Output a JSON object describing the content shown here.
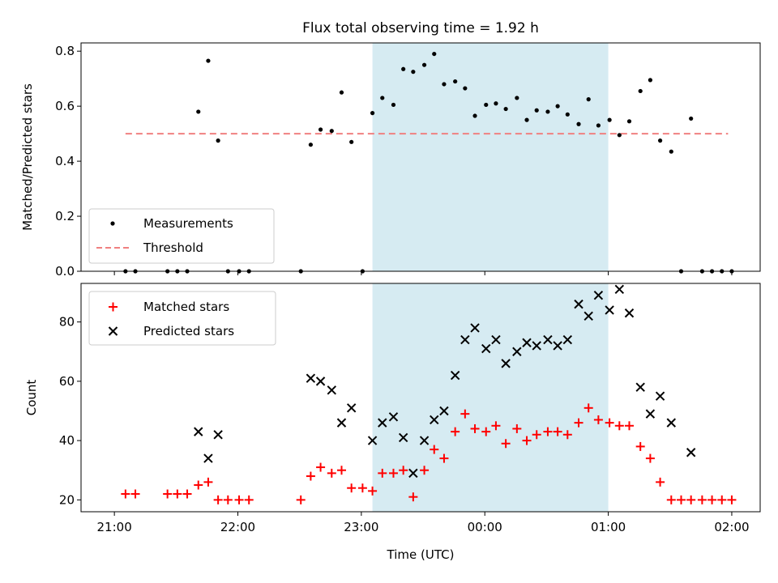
{
  "chart_data": [
    {
      "type": "scatter",
      "title": "Flux total observing time = 1.92 h",
      "ylabel": "Matched/Predicted stars",
      "xlabel": "",
      "xlim": [
        -0.27,
        5.23
      ],
      "ylim": [
        0,
        0.83
      ],
      "yticks": [
        0.0,
        0.2,
        0.4,
        0.6,
        0.8
      ],
      "ytick_labels": [
        "0.0",
        "0.2",
        "0.4",
        "0.6",
        "0.8"
      ],
      "xticks": [
        0,
        1,
        2,
        3,
        4,
        5
      ],
      "shaded_region": [
        2.09,
        4.0
      ],
      "shaded_color": "#add8e6",
      "threshold": {
        "value": 0.5,
        "x_range": [
          0.09,
          4.97
        ],
        "name": "Threshold",
        "color": "#f08080",
        "style": "dashed"
      },
      "legend_location": "lower left",
      "series": [
        {
          "name": "Measurements",
          "marker": "dot",
          "color": "#000000",
          "points": [
            [
              0.09,
              0.0
            ],
            [
              0.17,
              0.0
            ],
            [
              0.43,
              0.0
            ],
            [
              0.51,
              0.0
            ],
            [
              0.59,
              0.0
            ],
            [
              0.68,
              0.58
            ],
            [
              0.76,
              0.765
            ],
            [
              0.84,
              0.475
            ],
            [
              0.92,
              0.0
            ],
            [
              1.01,
              0.0
            ],
            [
              1.09,
              0.0
            ],
            [
              1.51,
              0.0
            ],
            [
              1.59,
              0.46
            ],
            [
              1.67,
              0.515
            ],
            [
              1.76,
              0.51
            ],
            [
              1.84,
              0.65
            ],
            [
              1.92,
              0.47
            ],
            [
              2.01,
              0.0
            ],
            [
              2.09,
              0.575
            ],
            [
              2.17,
              0.63
            ],
            [
              2.26,
              0.605
            ],
            [
              2.34,
              0.735
            ],
            [
              2.42,
              0.725
            ],
            [
              2.51,
              0.75
            ],
            [
              2.59,
              0.79
            ],
            [
              2.67,
              0.68
            ],
            [
              2.76,
              0.69
            ],
            [
              2.84,
              0.665
            ],
            [
              2.92,
              0.565
            ],
            [
              3.01,
              0.605
            ],
            [
              3.09,
              0.61
            ],
            [
              3.17,
              0.59
            ],
            [
              3.26,
              0.63
            ],
            [
              3.34,
              0.55
            ],
            [
              3.42,
              0.585
            ],
            [
              3.51,
              0.58
            ],
            [
              3.59,
              0.6
            ],
            [
              3.67,
              0.57
            ],
            [
              3.76,
              0.535
            ],
            [
              3.84,
              0.625
            ],
            [
              3.92,
              0.53
            ],
            [
              4.01,
              0.55
            ],
            [
              4.09,
              0.495
            ],
            [
              4.17,
              0.545
            ],
            [
              4.26,
              0.655
            ],
            [
              4.34,
              0.695
            ],
            [
              4.42,
              0.475
            ],
            [
              4.51,
              0.435
            ],
            [
              4.59,
              0.0
            ],
            [
              4.67,
              0.555
            ],
            [
              4.76,
              0.0
            ],
            [
              4.84,
              0.0
            ],
            [
              4.92,
              0.0
            ],
            [
              5.0,
              0.0
            ]
          ]
        }
      ]
    },
    {
      "type": "scatter",
      "title": "",
      "xlabel": "Time (UTC)",
      "ylabel": "Count",
      "xlim": [
        -0.27,
        5.23
      ],
      "ylim": [
        16,
        93
      ],
      "yticks": [
        20,
        40,
        60,
        80
      ],
      "ytick_labels": [
        "20",
        "40",
        "60",
        "80"
      ],
      "xticks": [
        0,
        1,
        2,
        3,
        4,
        5
      ],
      "xtick_labels": [
        "21:00",
        "22:00",
        "23:00",
        "00:00",
        "01:00",
        "02:00"
      ],
      "shaded_region": [
        2.09,
        4.0
      ],
      "shaded_color": "#add8e6",
      "legend_location": "upper left",
      "series": [
        {
          "name": "Matched stars",
          "marker": "plus",
          "color": "#ff0000",
          "points": [
            [
              0.09,
              22
            ],
            [
              0.17,
              22
            ],
            [
              0.43,
              22
            ],
            [
              0.51,
              22
            ],
            [
              0.59,
              22
            ],
            [
              0.68,
              25
            ],
            [
              0.76,
              26
            ],
            [
              0.84,
              20
            ],
            [
              0.92,
              20
            ],
            [
              1.01,
              20
            ],
            [
              1.09,
              20
            ],
            [
              1.51,
              20
            ],
            [
              1.59,
              28
            ],
            [
              1.67,
              31
            ],
            [
              1.76,
              29
            ],
            [
              1.84,
              30
            ],
            [
              1.92,
              24
            ],
            [
              2.01,
              24
            ],
            [
              2.09,
              23
            ],
            [
              2.17,
              29
            ],
            [
              2.26,
              29
            ],
            [
              2.34,
              30
            ],
            [
              2.42,
              21
            ],
            [
              2.51,
              30
            ],
            [
              2.59,
              37
            ],
            [
              2.67,
              34
            ],
            [
              2.76,
              43
            ],
            [
              2.84,
              49
            ],
            [
              2.92,
              44
            ],
            [
              3.01,
              43
            ],
            [
              3.09,
              45
            ],
            [
              3.17,
              39
            ],
            [
              3.26,
              44
            ],
            [
              3.34,
              40
            ],
            [
              3.42,
              42
            ],
            [
              3.51,
              43
            ],
            [
              3.59,
              43
            ],
            [
              3.67,
              42
            ],
            [
              3.76,
              46
            ],
            [
              3.84,
              51
            ],
            [
              3.92,
              47
            ],
            [
              4.01,
              46
            ],
            [
              4.09,
              45
            ],
            [
              4.17,
              45
            ],
            [
              4.26,
              38
            ],
            [
              4.34,
              34
            ],
            [
              4.42,
              26
            ],
            [
              4.51,
              20
            ],
            [
              4.59,
              20
            ],
            [
              4.67,
              20
            ],
            [
              4.76,
              20
            ],
            [
              4.84,
              20
            ],
            [
              4.92,
              20
            ],
            [
              5.0,
              20
            ]
          ]
        },
        {
          "name": "Predicted stars",
          "marker": "x",
          "color": "#000000",
          "points": [
            [
              0.68,
              43
            ],
            [
              0.76,
              34
            ],
            [
              0.84,
              42
            ],
            [
              1.59,
              61
            ],
            [
              1.67,
              60
            ],
            [
              1.76,
              57
            ],
            [
              1.84,
              46
            ],
            [
              1.92,
              51
            ],
            [
              2.09,
              40
            ],
            [
              2.17,
              46
            ],
            [
              2.26,
              48
            ],
            [
              2.34,
              41
            ],
            [
              2.42,
              29
            ],
            [
              2.51,
              40
            ],
            [
              2.59,
              47
            ],
            [
              2.67,
              50
            ],
            [
              2.76,
              62
            ],
            [
              2.84,
              74
            ],
            [
              2.92,
              78
            ],
            [
              3.01,
              71
            ],
            [
              3.09,
              74
            ],
            [
              3.17,
              66
            ],
            [
              3.26,
              70
            ],
            [
              3.34,
              73
            ],
            [
              3.42,
              72
            ],
            [
              3.51,
              74
            ],
            [
              3.59,
              72
            ],
            [
              3.67,
              74
            ],
            [
              3.76,
              86
            ],
            [
              3.84,
              82
            ],
            [
              3.92,
              89
            ],
            [
              4.01,
              84
            ],
            [
              4.09,
              91
            ],
            [
              4.17,
              83
            ],
            [
              4.26,
              58
            ],
            [
              4.34,
              49
            ],
            [
              4.42,
              55
            ],
            [
              4.51,
              46
            ],
            [
              4.67,
              36
            ]
          ]
        }
      ]
    }
  ]
}
